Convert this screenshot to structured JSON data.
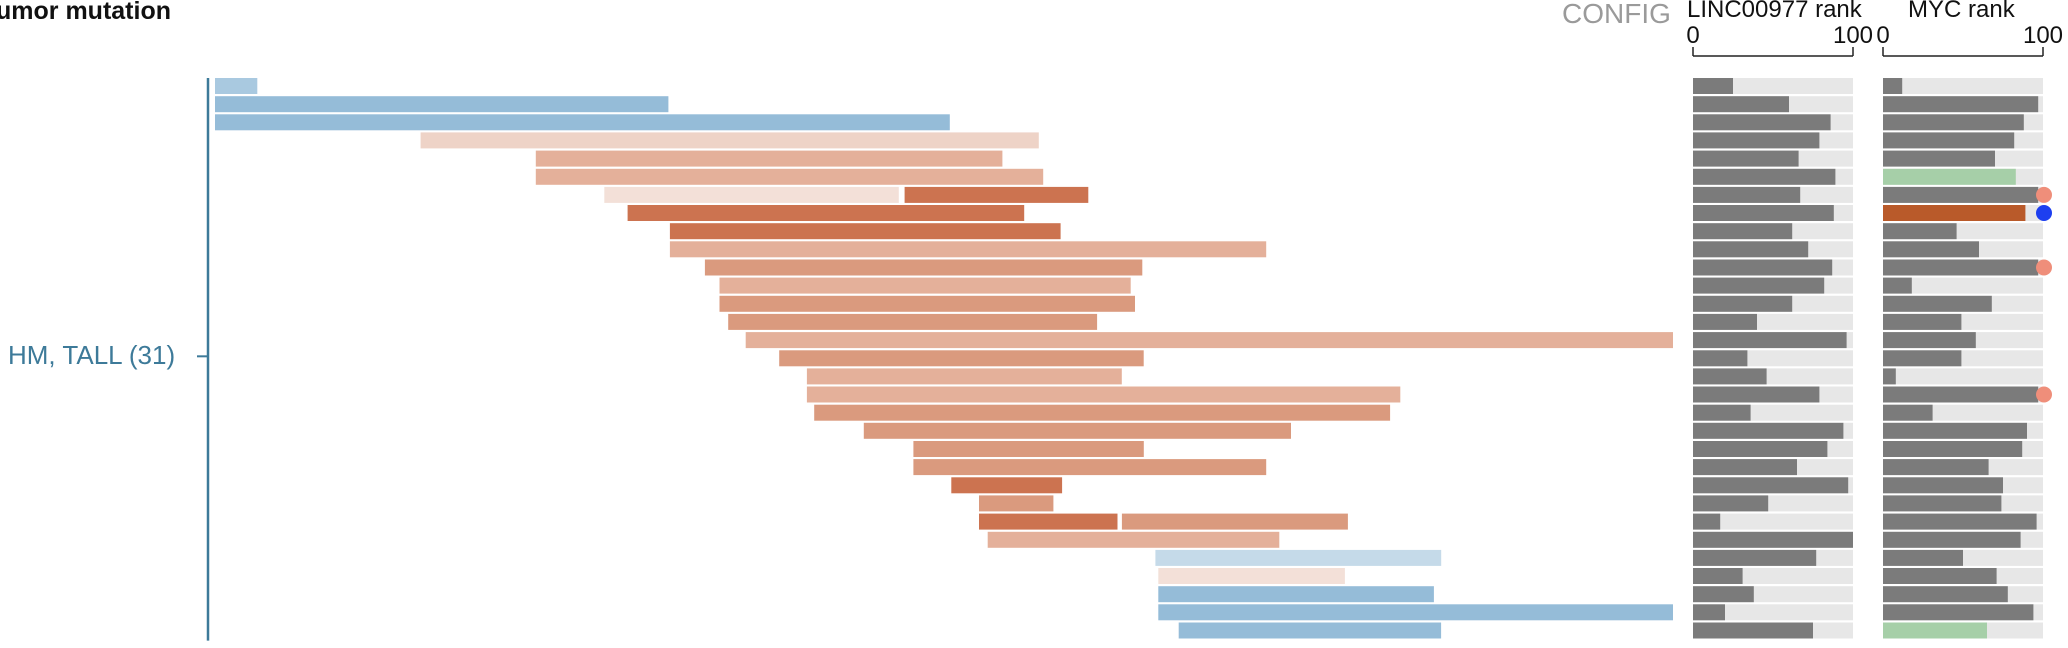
{
  "header": {
    "title": "umor mutation",
    "config_label": "CONFIG"
  },
  "group": {
    "label": "HM, TALL (31)"
  },
  "colors": {
    "blue_strong": "#95bcd8",
    "blue_light": "#a9c9e0",
    "blue_pale": "#c5dae9",
    "orange_dark": "#cc7350",
    "orange_mid": "#da9a7e",
    "orange_light": "#e4b09a",
    "orange_pale": "#eed3c7",
    "orange_paler": "#f3e0d8",
    "rank_bar": "#7b7b7b",
    "rank_bg": "#e7e7e7",
    "rank_green": "#a6cfa8",
    "rank_highlight": "#b95a2a",
    "dot_salmon": "#ef8e7a",
    "dot_blue": "#1d3ff0",
    "axis": "#3d7a99"
  },
  "chart_data": {
    "type": "bar",
    "subtype": "segment-timeline",
    "x_domain": [
      0,
      1000
    ],
    "rows": [
      {
        "segments": [
          {
            "start": 0,
            "end": 29,
            "color": "blue_light"
          }
        ]
      },
      {
        "segments": [
          {
            "start": 0,
            "end": 311,
            "color": "blue_strong"
          }
        ]
      },
      {
        "segments": [
          {
            "start": 0,
            "end": 504,
            "color": "blue_strong"
          }
        ]
      },
      {
        "segments": [
          {
            "start": 141,
            "end": 565,
            "color": "orange_pale"
          }
        ]
      },
      {
        "segments": [
          {
            "start": 220,
            "end": 540,
            "color": "orange_light"
          }
        ]
      },
      {
        "segments": [
          {
            "start": 220,
            "end": 568,
            "color": "orange_light"
          }
        ]
      },
      {
        "segments": [
          {
            "start": 267,
            "end": 469,
            "color": "orange_paler"
          },
          {
            "start": 473,
            "end": 599,
            "color": "orange_dark"
          }
        ]
      },
      {
        "segments": [
          {
            "start": 283,
            "end": 555,
            "color": "orange_dark"
          }
        ]
      },
      {
        "segments": [
          {
            "start": 312,
            "end": 580,
            "color": "orange_dark"
          }
        ]
      },
      {
        "segments": [
          {
            "start": 312,
            "end": 721,
            "color": "orange_light"
          }
        ]
      },
      {
        "segments": [
          {
            "start": 336,
            "end": 636,
            "color": "orange_mid"
          }
        ]
      },
      {
        "segments": [
          {
            "start": 346,
            "end": 628,
            "color": "orange_light"
          }
        ]
      },
      {
        "segments": [
          {
            "start": 346,
            "end": 631,
            "color": "orange_mid"
          }
        ]
      },
      {
        "segments": [
          {
            "start": 352,
            "end": 605,
            "color": "orange_mid"
          }
        ]
      },
      {
        "segments": [
          {
            "start": 364,
            "end": 1000,
            "color": "orange_light"
          }
        ]
      },
      {
        "segments": [
          {
            "start": 387,
            "end": 637,
            "color": "orange_mid"
          }
        ]
      },
      {
        "segments": [
          {
            "start": 406,
            "end": 622,
            "color": "orange_light"
          }
        ]
      },
      {
        "segments": [
          {
            "start": 406,
            "end": 813,
            "color": "orange_light"
          }
        ]
      },
      {
        "segments": [
          {
            "start": 411,
            "end": 806,
            "color": "orange_mid"
          }
        ]
      },
      {
        "segments": [
          {
            "start": 445,
            "end": 738,
            "color": "orange_mid"
          }
        ]
      },
      {
        "segments": [
          {
            "start": 479,
            "end": 637,
            "color": "orange_mid"
          }
        ]
      },
      {
        "segments": [
          {
            "start": 479,
            "end": 721,
            "color": "orange_mid"
          }
        ]
      },
      {
        "segments": [
          {
            "start": 505,
            "end": 581,
            "color": "orange_dark"
          }
        ]
      },
      {
        "segments": [
          {
            "start": 524,
            "end": 575,
            "color": "orange_mid"
          }
        ]
      },
      {
        "segments": [
          {
            "start": 524,
            "end": 619,
            "color": "orange_dark"
          },
          {
            "start": 622,
            "end": 777,
            "color": "orange_mid"
          }
        ]
      },
      {
        "segments": [
          {
            "start": 530,
            "end": 730,
            "color": "orange_light"
          }
        ]
      },
      {
        "segments": [
          {
            "start": 645,
            "end": 841,
            "color": "blue_pale"
          }
        ]
      },
      {
        "segments": [
          {
            "start": 647,
            "end": 775,
            "color": "orange_paler"
          }
        ]
      },
      {
        "segments": [
          {
            "start": 647,
            "end": 836,
            "color": "blue_strong"
          }
        ]
      },
      {
        "segments": [
          {
            "start": 647,
            "end": 1000,
            "color": "blue_strong"
          }
        ]
      },
      {
        "segments": [
          {
            "start": 661,
            "end": 841,
            "color": "blue_strong"
          }
        ]
      }
    ],
    "rank_columns": [
      {
        "title": "LINC00977 rank",
        "tick_labels": [
          "0",
          "100"
        ],
        "domain": [
          0,
          100
        ],
        "values": [
          25,
          60,
          86,
          79,
          66,
          89,
          67,
          88,
          62,
          72,
          87,
          82,
          62,
          40,
          96,
          34,
          46,
          79,
          36,
          94,
          84,
          65,
          97,
          47,
          17,
          100,
          77,
          31,
          38,
          20,
          75
        ],
        "value_colors": {},
        "markers": {}
      },
      {
        "title": "MYC rank",
        "tick_labels": [
          "0",
          "100"
        ],
        "domain": [
          0,
          100
        ],
        "values": [
          12,
          97,
          88,
          82,
          70,
          83,
          97,
          89,
          46,
          60,
          97,
          18,
          68,
          49,
          58,
          49,
          8,
          97,
          31,
          90,
          87,
          66,
          75,
          74,
          96,
          86,
          50,
          71,
          78,
          94,
          65
        ],
        "value_colors": {
          "5": "rank_green",
          "7": "rank_highlight",
          "30": "rank_green"
        },
        "markers": {
          "6": "dot_salmon",
          "7": "dot_blue",
          "10": "dot_salmon",
          "17": "dot_salmon"
        }
      }
    ]
  }
}
